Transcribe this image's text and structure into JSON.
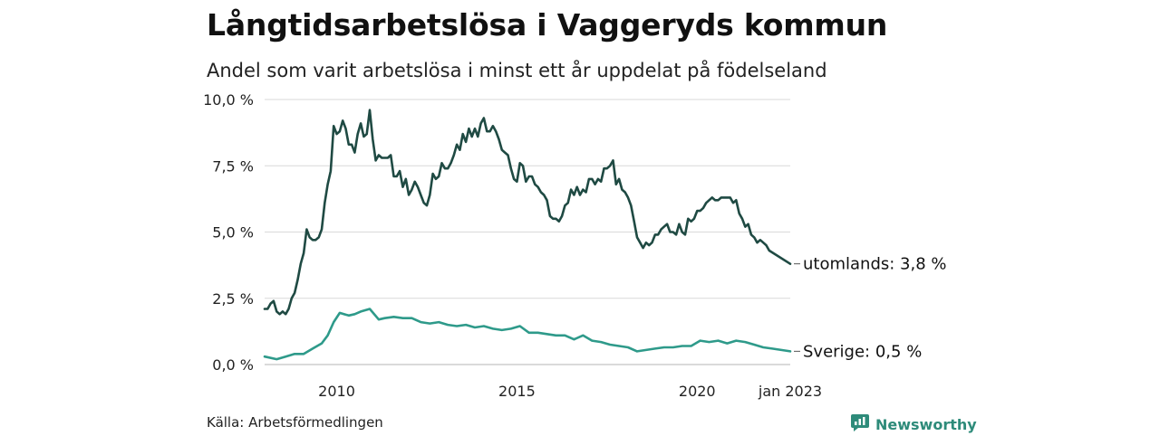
{
  "header": {
    "title": "Långtidsarbetslösa i Vaggeryds kommun",
    "subtitle": "Andel som varit arbetslösa i minst ett år uppdelat på födelseland"
  },
  "footer": {
    "source": "Källa: Arbetsförmedlingen",
    "brand": "Newsworthy"
  },
  "colors": {
    "utomlands": "#1f4a43",
    "sverige": "#2e9a8a",
    "grid": "#d9d9d9",
    "brand": "#2e8b7a"
  },
  "icons": {
    "brand_logo": "bar-chart-bubble-icon"
  },
  "chart_data": {
    "type": "line",
    "x_start": "2008-06",
    "x_end": "2023-01",
    "x_interval": "month",
    "ylim": [
      0,
      10
    ],
    "y_ticks": [
      "0,0 %",
      "2,5 %",
      "5,0 %",
      "7,5 %",
      "10,0 %"
    ],
    "y_tick_values": [
      0,
      2.5,
      5,
      7.5,
      10
    ],
    "x_ticks": [
      "2010",
      "2015",
      "2020",
      "jan 2023"
    ],
    "x_tick_dates": [
      "2010-06",
      "2015-06",
      "2020-06",
      "2023-01"
    ],
    "grid": "horizontal",
    "series": [
      {
        "key": "utomlands",
        "end_label": "utomlands: 3,8 %",
        "anchors": [
          [
            "2008-06",
            2.1
          ],
          [
            "2008-07",
            2.1
          ],
          [
            "2008-08",
            2.3
          ],
          [
            "2008-09",
            2.4
          ],
          [
            "2008-10",
            2.0
          ],
          [
            "2008-11",
            1.9
          ],
          [
            "2008-12",
            2.0
          ],
          [
            "2009-01",
            1.9
          ],
          [
            "2009-02",
            2.1
          ],
          [
            "2009-03",
            2.5
          ],
          [
            "2009-04",
            2.7
          ],
          [
            "2009-05",
            3.2
          ],
          [
            "2009-06",
            3.8
          ],
          [
            "2009-07",
            4.2
          ],
          [
            "2009-08",
            5.1
          ],
          [
            "2009-09",
            4.8
          ],
          [
            "2009-10",
            4.7
          ],
          [
            "2009-11",
            4.7
          ],
          [
            "2009-12",
            4.8
          ],
          [
            "2010-01",
            5.1
          ],
          [
            "2010-02",
            6.1
          ],
          [
            "2010-03",
            6.8
          ],
          [
            "2010-04",
            7.3
          ],
          [
            "2010-05",
            9.0
          ],
          [
            "2010-06",
            8.7
          ],
          [
            "2010-07",
            8.8
          ],
          [
            "2010-08",
            9.2
          ],
          [
            "2010-09",
            8.9
          ],
          [
            "2010-10",
            8.3
          ],
          [
            "2010-11",
            8.3
          ],
          [
            "2010-12",
            8.0
          ],
          [
            "2011-01",
            8.7
          ],
          [
            "2011-02",
            9.1
          ],
          [
            "2011-03",
            8.6
          ],
          [
            "2011-04",
            8.7
          ],
          [
            "2011-05",
            9.6
          ],
          [
            "2011-06",
            8.5
          ],
          [
            "2011-07",
            7.7
          ],
          [
            "2011-08",
            7.9
          ],
          [
            "2011-09",
            7.8
          ],
          [
            "2011-10",
            7.8
          ],
          [
            "2011-11",
            7.8
          ],
          [
            "2011-12",
            7.9
          ],
          [
            "2012-01",
            7.1
          ],
          [
            "2012-02",
            7.1
          ],
          [
            "2012-03",
            7.3
          ],
          [
            "2012-04",
            6.7
          ],
          [
            "2012-05",
            7.0
          ],
          [
            "2012-06",
            6.4
          ],
          [
            "2012-07",
            6.6
          ],
          [
            "2012-08",
            6.9
          ],
          [
            "2012-09",
            6.7
          ],
          [
            "2012-10",
            6.4
          ],
          [
            "2012-11",
            6.1
          ],
          [
            "2012-12",
            6.0
          ],
          [
            "2013-01",
            6.4
          ],
          [
            "2013-02",
            7.2
          ],
          [
            "2013-03",
            7.0
          ],
          [
            "2013-04",
            7.1
          ],
          [
            "2013-05",
            7.6
          ],
          [
            "2013-06",
            7.4
          ],
          [
            "2013-07",
            7.4
          ],
          [
            "2013-08",
            7.6
          ],
          [
            "2013-09",
            7.9
          ],
          [
            "2013-10",
            8.3
          ],
          [
            "2013-11",
            8.1
          ],
          [
            "2013-12",
            8.7
          ],
          [
            "2014-01",
            8.4
          ],
          [
            "2014-02",
            8.9
          ],
          [
            "2014-03",
            8.6
          ],
          [
            "2014-04",
            8.9
          ],
          [
            "2014-05",
            8.6
          ],
          [
            "2014-06",
            9.1
          ],
          [
            "2014-07",
            9.3
          ],
          [
            "2014-08",
            8.8
          ],
          [
            "2014-09",
            8.8
          ],
          [
            "2014-10",
            9.0
          ],
          [
            "2014-11",
            8.8
          ],
          [
            "2014-12",
            8.5
          ],
          [
            "2015-01",
            8.1
          ],
          [
            "2015-02",
            8.0
          ],
          [
            "2015-03",
            7.9
          ],
          [
            "2015-04",
            7.4
          ],
          [
            "2015-05",
            7.0
          ],
          [
            "2015-06",
            6.9
          ],
          [
            "2015-07",
            7.6
          ],
          [
            "2015-08",
            7.5
          ],
          [
            "2015-09",
            6.9
          ],
          [
            "2015-10",
            7.1
          ],
          [
            "2015-11",
            7.1
          ],
          [
            "2015-12",
            6.8
          ],
          [
            "2016-01",
            6.7
          ],
          [
            "2016-02",
            6.5
          ],
          [
            "2016-03",
            6.4
          ],
          [
            "2016-04",
            6.2
          ],
          [
            "2016-05",
            5.6
          ],
          [
            "2016-06",
            5.5
          ],
          [
            "2016-07",
            5.5
          ],
          [
            "2016-08",
            5.4
          ],
          [
            "2016-09",
            5.6
          ],
          [
            "2016-10",
            6.0
          ],
          [
            "2016-11",
            6.1
          ],
          [
            "2016-12",
            6.6
          ],
          [
            "2017-01",
            6.4
          ],
          [
            "2017-02",
            6.7
          ],
          [
            "2017-03",
            6.4
          ],
          [
            "2017-04",
            6.6
          ],
          [
            "2017-05",
            6.5
          ],
          [
            "2017-06",
            7.0
          ],
          [
            "2017-07",
            7.0
          ],
          [
            "2017-08",
            6.8
          ],
          [
            "2017-09",
            7.0
          ],
          [
            "2017-10",
            6.9
          ],
          [
            "2017-11",
            7.4
          ],
          [
            "2017-12",
            7.4
          ],
          [
            "2018-01",
            7.5
          ],
          [
            "2018-02",
            7.7
          ],
          [
            "2018-03",
            6.8
          ],
          [
            "2018-04",
            7.0
          ],
          [
            "2018-05",
            6.6
          ],
          [
            "2018-06",
            6.5
          ],
          [
            "2018-07",
            6.3
          ],
          [
            "2018-08",
            6.0
          ],
          [
            "2018-09",
            5.4
          ],
          [
            "2018-10",
            4.8
          ],
          [
            "2018-11",
            4.6
          ],
          [
            "2018-12",
            4.4
          ],
          [
            "2019-01",
            4.6
          ],
          [
            "2019-02",
            4.5
          ],
          [
            "2019-03",
            4.6
          ],
          [
            "2019-04",
            4.9
          ],
          [
            "2019-05",
            4.9
          ],
          [
            "2019-06",
            5.1
          ],
          [
            "2019-07",
            5.2
          ],
          [
            "2019-08",
            5.3
          ],
          [
            "2019-09",
            5.0
          ],
          [
            "2019-10",
            5.0
          ],
          [
            "2019-11",
            4.9
          ],
          [
            "2019-12",
            5.3
          ],
          [
            "2020-01",
            5.0
          ],
          [
            "2020-02",
            4.9
          ],
          [
            "2020-03",
            5.5
          ],
          [
            "2020-04",
            5.4
          ],
          [
            "2020-05",
            5.5
          ],
          [
            "2020-06",
            5.8
          ],
          [
            "2020-07",
            5.8
          ],
          [
            "2020-08",
            5.9
          ],
          [
            "2020-09",
            6.1
          ],
          [
            "2020-10",
            6.2
          ],
          [
            "2020-11",
            6.3
          ],
          [
            "2020-12",
            6.2
          ],
          [
            "2021-01",
            6.2
          ],
          [
            "2021-02",
            6.3
          ],
          [
            "2021-03",
            6.3
          ],
          [
            "2021-04",
            6.3
          ],
          [
            "2021-05",
            6.3
          ],
          [
            "2021-06",
            6.1
          ],
          [
            "2021-07",
            6.2
          ],
          [
            "2021-08",
            5.7
          ],
          [
            "2021-09",
            5.5
          ],
          [
            "2021-10",
            5.2
          ],
          [
            "2021-11",
            5.3
          ],
          [
            "2021-12",
            4.9
          ],
          [
            "2022-01",
            4.8
          ],
          [
            "2022-02",
            4.6
          ],
          [
            "2022-03",
            4.7
          ],
          [
            "2022-04",
            4.6
          ],
          [
            "2022-05",
            4.5
          ],
          [
            "2022-06",
            4.3
          ],
          [
            "2023-01",
            3.8
          ]
        ]
      },
      {
        "key": "sverige",
        "end_label": "Sverige: 0,5 %",
        "anchors": [
          [
            "2008-06",
            0.3
          ],
          [
            "2008-10",
            0.2
          ],
          [
            "2009-01",
            0.3
          ],
          [
            "2009-04",
            0.4
          ],
          [
            "2009-07",
            0.4
          ],
          [
            "2009-10",
            0.6
          ],
          [
            "2010-01",
            0.8
          ],
          [
            "2010-03",
            1.1
          ],
          [
            "2010-05",
            1.6
          ],
          [
            "2010-07",
            1.95
          ],
          [
            "2010-10",
            1.85
          ],
          [
            "2010-12",
            1.9
          ],
          [
            "2011-02",
            2.0
          ],
          [
            "2011-05",
            2.1
          ],
          [
            "2011-08",
            1.7
          ],
          [
            "2011-10",
            1.75
          ],
          [
            "2012-01",
            1.8
          ],
          [
            "2012-04",
            1.75
          ],
          [
            "2012-07",
            1.75
          ],
          [
            "2012-10",
            1.6
          ],
          [
            "2013-01",
            1.55
          ],
          [
            "2013-04",
            1.6
          ],
          [
            "2013-07",
            1.5
          ],
          [
            "2013-10",
            1.45
          ],
          [
            "2014-01",
            1.5
          ],
          [
            "2014-04",
            1.4
          ],
          [
            "2014-07",
            1.45
          ],
          [
            "2014-10",
            1.35
          ],
          [
            "2015-01",
            1.3
          ],
          [
            "2015-04",
            1.35
          ],
          [
            "2015-07",
            1.45
          ],
          [
            "2015-10",
            1.2
          ],
          [
            "2016-01",
            1.2
          ],
          [
            "2016-04",
            1.15
          ],
          [
            "2016-07",
            1.1
          ],
          [
            "2016-10",
            1.1
          ],
          [
            "2017-01",
            0.95
          ],
          [
            "2017-04",
            1.1
          ],
          [
            "2017-07",
            0.9
          ],
          [
            "2017-10",
            0.85
          ],
          [
            "2018-01",
            0.75
          ],
          [
            "2018-04",
            0.7
          ],
          [
            "2018-07",
            0.65
          ],
          [
            "2018-10",
            0.5
          ],
          [
            "2019-01",
            0.55
          ],
          [
            "2019-04",
            0.6
          ],
          [
            "2019-07",
            0.65
          ],
          [
            "2019-10",
            0.65
          ],
          [
            "2020-01",
            0.7
          ],
          [
            "2020-04",
            0.7
          ],
          [
            "2020-07",
            0.9
          ],
          [
            "2020-10",
            0.85
          ],
          [
            "2021-01",
            0.9
          ],
          [
            "2021-04",
            0.8
          ],
          [
            "2021-07",
            0.9
          ],
          [
            "2021-10",
            0.85
          ],
          [
            "2022-01",
            0.75
          ],
          [
            "2022-04",
            0.65
          ],
          [
            "2022-07",
            0.6
          ],
          [
            "2022-10",
            0.55
          ],
          [
            "2023-01",
            0.5
          ]
        ]
      }
    ]
  }
}
